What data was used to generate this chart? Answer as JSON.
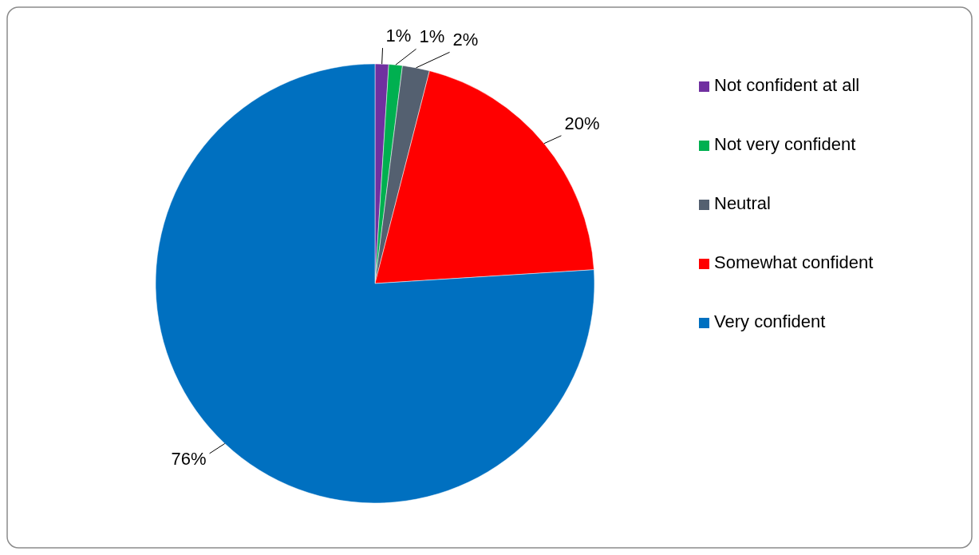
{
  "chart_data": {
    "type": "pie",
    "categories": [
      "Not confident at all",
      "Not very confident",
      "Neutral",
      "Somewhat confident",
      "Very confident"
    ],
    "values": [
      1,
      1,
      2,
      20,
      76
    ],
    "colors": [
      "#7030a0",
      "#00b050",
      "#546070",
      "#ff0000",
      "#0070c0"
    ],
    "value_labels": [
      "1%",
      "1%",
      "2%",
      "20%",
      "76%"
    ],
    "legend": "right"
  }
}
